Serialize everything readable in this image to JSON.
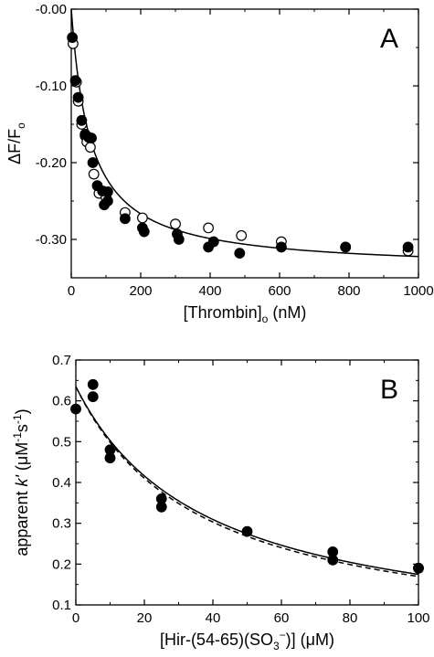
{
  "chart_data": [
    {
      "type": "scatter",
      "panel_label": "A",
      "xlabel_parts": [
        "[Thrombin]",
        "o",
        " (nM)"
      ],
      "ylabel_parts": [
        "ΔF/F",
        "o"
      ],
      "xlim": [
        0,
        1000
      ],
      "ylim": [
        -0.35,
        0.0
      ],
      "xticks": [
        0,
        200,
        400,
        600,
        800,
        1000
      ],
      "xtick_labels": [
        "0",
        "200",
        "400",
        "600",
        "800",
        "1000"
      ],
      "yticks": [
        0.0,
        -0.1,
        -0.2,
        -0.3
      ],
      "ytick_labels": [
        "-0.00",
        "-0.10",
        "-0.20",
        "-0.30"
      ],
      "series": [
        {
          "marker": "open-circle",
          "points": [
            [
              5,
              -0.045
            ],
            [
              15,
              -0.095
            ],
            [
              20,
              -0.12
            ],
            [
              30,
              -0.15
            ],
            [
              40,
              -0.165
            ],
            [
              45,
              -0.173
            ],
            [
              55,
              -0.18
            ],
            [
              65,
              -0.215
            ],
            [
              80,
              -0.24
            ],
            [
              100,
              -0.245
            ],
            [
              155,
              -0.265
            ],
            [
              205,
              -0.272
            ],
            [
              300,
              -0.28
            ],
            [
              395,
              -0.285
            ],
            [
              490,
              -0.295
            ],
            [
              605,
              -0.303
            ],
            [
              790,
              -0.31
            ],
            [
              970,
              -0.315
            ]
          ]
        },
        {
          "marker": "filled-circle",
          "points": [
            [
              3,
              -0.037
            ],
            [
              12,
              -0.093
            ],
            [
              20,
              -0.115
            ],
            [
              30,
              -0.145
            ],
            [
              40,
              -0.163
            ],
            [
              50,
              -0.167
            ],
            [
              58,
              -0.168
            ],
            [
              62,
              -0.2
            ],
            [
              75,
              -0.23
            ],
            [
              90,
              -0.237
            ],
            [
              95,
              -0.255
            ],
            [
              105,
              -0.25
            ],
            [
              105,
              -0.238
            ],
            [
              155,
              -0.273
            ],
            [
              205,
              -0.285
            ],
            [
              210,
              -0.29
            ],
            [
              305,
              -0.293
            ],
            [
              310,
              -0.3
            ],
            [
              395,
              -0.31
            ],
            [
              410,
              -0.303
            ],
            [
              485,
              -0.318
            ],
            [
              605,
              -0.31
            ],
            [
              790,
              -0.31
            ],
            [
              970,
              -0.31
            ]
          ]
        },
        {
          "type": "line",
          "style": "solid",
          "function": "hyperbolic_binding",
          "params": {
            "dfmax": -0.34,
            "kd": 55
          }
        }
      ]
    },
    {
      "type": "scatter",
      "panel_label": "B",
      "xlabel_parts": [
        "[Hir-(54-65)(SO",
        "3",
        "−",
        ")] (μM)"
      ],
      "ylabel_parts": [
        "apparent ",
        "k'",
        " (μM",
        "-1",
        "s",
        "-1",
        ")"
      ],
      "xlim": [
        0,
        100
      ],
      "ylim": [
        0.1,
        0.7
      ],
      "xticks": [
        0,
        20,
        40,
        60,
        80,
        100
      ],
      "xtick_labels": [
        "0",
        "20",
        "40",
        "60",
        "80",
        "100"
      ],
      "yticks": [
        0.1,
        0.2,
        0.3,
        0.4,
        0.5,
        0.6,
        0.7
      ],
      "ytick_labels": [
        "0.1",
        "0.2",
        "0.3",
        "0.4",
        "0.5",
        "0.6",
        "0.7"
      ],
      "series": [
        {
          "marker": "filled-circle",
          "points": [
            [
              0,
              0.58
            ],
            [
              5,
              0.64
            ],
            [
              5,
              0.61
            ],
            [
              10,
              0.48
            ],
            [
              10,
              0.46
            ],
            [
              25,
              0.36
            ],
            [
              25,
              0.34
            ],
            [
              50,
              0.28
            ],
            [
              75,
              0.23
            ],
            [
              75,
              0.21
            ],
            [
              100,
              0.19
            ],
            [
              100,
              0.19
            ]
          ]
        },
        {
          "type": "line",
          "style": "solid",
          "function": "hyperbolic_decay",
          "params": {
            "k0": 0.635,
            "kd": 38.0
          }
        },
        {
          "type": "line",
          "style": "dashed",
          "function": "hyperbolic_decay",
          "params": {
            "k0": 0.635,
            "kd": 36.5
          }
        }
      ]
    }
  ]
}
